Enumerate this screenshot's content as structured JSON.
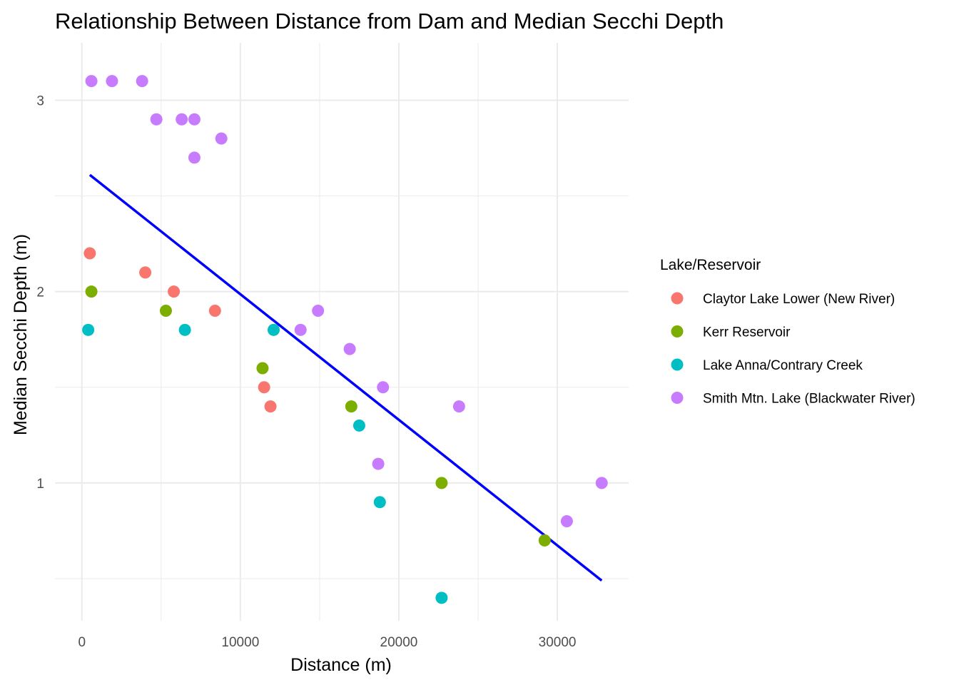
{
  "chart_data": {
    "type": "scatter",
    "title": "Relationship Between Distance from Dam and Median Secchi Depth",
    "xlabel": "Distance (m)",
    "ylabel": "Median Secchi Depth (m)",
    "xlim": [
      -1700,
      34500
    ],
    "ylim": [
      0.28,
      3.3
    ],
    "x_ticks": [
      0,
      10000,
      20000,
      30000
    ],
    "x_tick_labels": [
      "0",
      "10000",
      "20000",
      "30000"
    ],
    "x_minor_ticks": [
      5000,
      15000,
      25000
    ],
    "y_ticks": [
      1,
      2,
      3
    ],
    "y_tick_labels": [
      "1",
      "2",
      "3"
    ],
    "y_minor_ticks": [
      0.5,
      1.5,
      2.5
    ],
    "grid": true,
    "legend_title": "Lake/Reservoir",
    "legend_position": "right",
    "series": [
      {
        "name": "Claytor Lake Lower (New River)",
        "color": "#F8766D",
        "points": [
          {
            "x": 500,
            "y": 2.2
          },
          {
            "x": 4000,
            "y": 2.1
          },
          {
            "x": 5800,
            "y": 2.0
          },
          {
            "x": 8400,
            "y": 1.9
          },
          {
            "x": 11500,
            "y": 1.5
          },
          {
            "x": 11900,
            "y": 1.4
          }
        ]
      },
      {
        "name": "Kerr Reservoir",
        "color": "#7CAE00",
        "points": [
          {
            "x": 600,
            "y": 2.0
          },
          {
            "x": 5300,
            "y": 1.9
          },
          {
            "x": 11400,
            "y": 1.6
          },
          {
            "x": 17000,
            "y": 1.4
          },
          {
            "x": 22700,
            "y": 1.0
          },
          {
            "x": 29200,
            "y": 0.7
          }
        ]
      },
      {
        "name": "Lake Anna/Contrary Creek",
        "color": "#00BFC4",
        "points": [
          {
            "x": 400,
            "y": 1.8
          },
          {
            "x": 6500,
            "y": 1.8
          },
          {
            "x": 12100,
            "y": 1.8
          },
          {
            "x": 17500,
            "y": 1.3
          },
          {
            "x": 18800,
            "y": 0.9
          },
          {
            "x": 22700,
            "y": 0.4
          }
        ]
      },
      {
        "name": "Smith Mtn. Lake (Blackwater River)",
        "color": "#C77CFF",
        "points": [
          {
            "x": 600,
            "y": 3.1
          },
          {
            "x": 1900,
            "y": 3.1
          },
          {
            "x": 3800,
            "y": 3.1
          },
          {
            "x": 4700,
            "y": 2.9
          },
          {
            "x": 6300,
            "y": 2.9
          },
          {
            "x": 7100,
            "y": 2.9
          },
          {
            "x": 8800,
            "y": 2.8
          },
          {
            "x": 7100,
            "y": 2.7
          },
          {
            "x": 13800,
            "y": 1.8
          },
          {
            "x": 14900,
            "y": 1.9
          },
          {
            "x": 16900,
            "y": 1.7
          },
          {
            "x": 19000,
            "y": 1.5
          },
          {
            "x": 18700,
            "y": 1.1
          },
          {
            "x": 23800,
            "y": 1.4
          },
          {
            "x": 30600,
            "y": 0.8
          },
          {
            "x": 32800,
            "y": 1.0
          }
        ]
      }
    ],
    "trend_line": {
      "color": "#0000FF",
      "points": [
        {
          "x": 500,
          "y": 2.61
        },
        {
          "x": 32800,
          "y": 0.49
        }
      ]
    }
  }
}
